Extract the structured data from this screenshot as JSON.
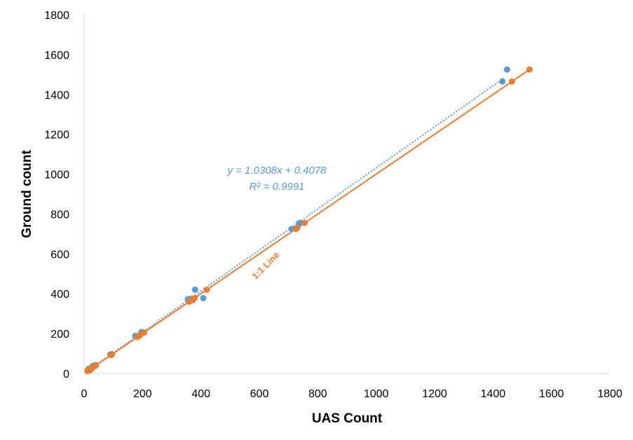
{
  "chart_data": {
    "type": "scatter",
    "xlabel": "UAS Count",
    "ylabel": "Ground count",
    "xlim": [
      0,
      1800
    ],
    "ylim": [
      0,
      1800
    ],
    "xticks": [
      0,
      200,
      400,
      600,
      800,
      1000,
      1200,
      1400,
      1600,
      1800
    ],
    "yticks": [
      0,
      200,
      400,
      600,
      800,
      1000,
      1200,
      1400,
      1600,
      1800
    ],
    "grid": false,
    "series": [
      {
        "color": "#5B9BD5",
        "marker": "circle",
        "points": [
          [
            12,
            15
          ],
          [
            15,
            22
          ],
          [
            18,
            20
          ],
          [
            20,
            25
          ],
          [
            22,
            18
          ],
          [
            25,
            22
          ],
          [
            30,
            38
          ],
          [
            35,
            40
          ],
          [
            40,
            42
          ],
          [
            90,
            95
          ],
          [
            95,
            97
          ],
          [
            175,
            188
          ],
          [
            190,
            192
          ],
          [
            197,
            208
          ],
          [
            203,
            205
          ],
          [
            355,
            372
          ],
          [
            365,
            375
          ],
          [
            372,
            368
          ],
          [
            380,
            420
          ],
          [
            408,
            378
          ],
          [
            710,
            725
          ],
          [
            735,
            752
          ],
          [
            740,
            755
          ],
          [
            1432,
            1465
          ],
          [
            1448,
            1525
          ]
        ]
      },
      {
        "color": "#ED7D31",
        "marker": "circle",
        "points": [
          [
            12,
            12
          ],
          [
            15,
            15
          ],
          [
            18,
            18
          ],
          [
            22,
            22
          ],
          [
            25,
            25
          ],
          [
            35,
            35
          ],
          [
            40,
            40
          ],
          [
            92,
            92
          ],
          [
            95,
            95
          ],
          [
            183,
            183
          ],
          [
            190,
            190
          ],
          [
            205,
            205
          ],
          [
            360,
            360
          ],
          [
            370,
            370
          ],
          [
            378,
            378
          ],
          [
            420,
            420
          ],
          [
            725,
            725
          ],
          [
            730,
            730
          ],
          [
            755,
            755
          ],
          [
            1465,
            1465
          ],
          [
            1525,
            1525
          ]
        ]
      }
    ],
    "trendline": {
      "color": "#5B9BD5",
      "style": "dotted",
      "slope": 1.0308,
      "intercept": 0.4078,
      "x_range": [
        10,
        1440
      ],
      "equation_label": "y = 1.0308x + 0.4078",
      "r2_label": "R² = 0.9991"
    },
    "identity_line": {
      "color": "#ED7D31",
      "style": "solid",
      "x_range": [
        10,
        1525
      ],
      "label": "1:1 Line"
    }
  }
}
